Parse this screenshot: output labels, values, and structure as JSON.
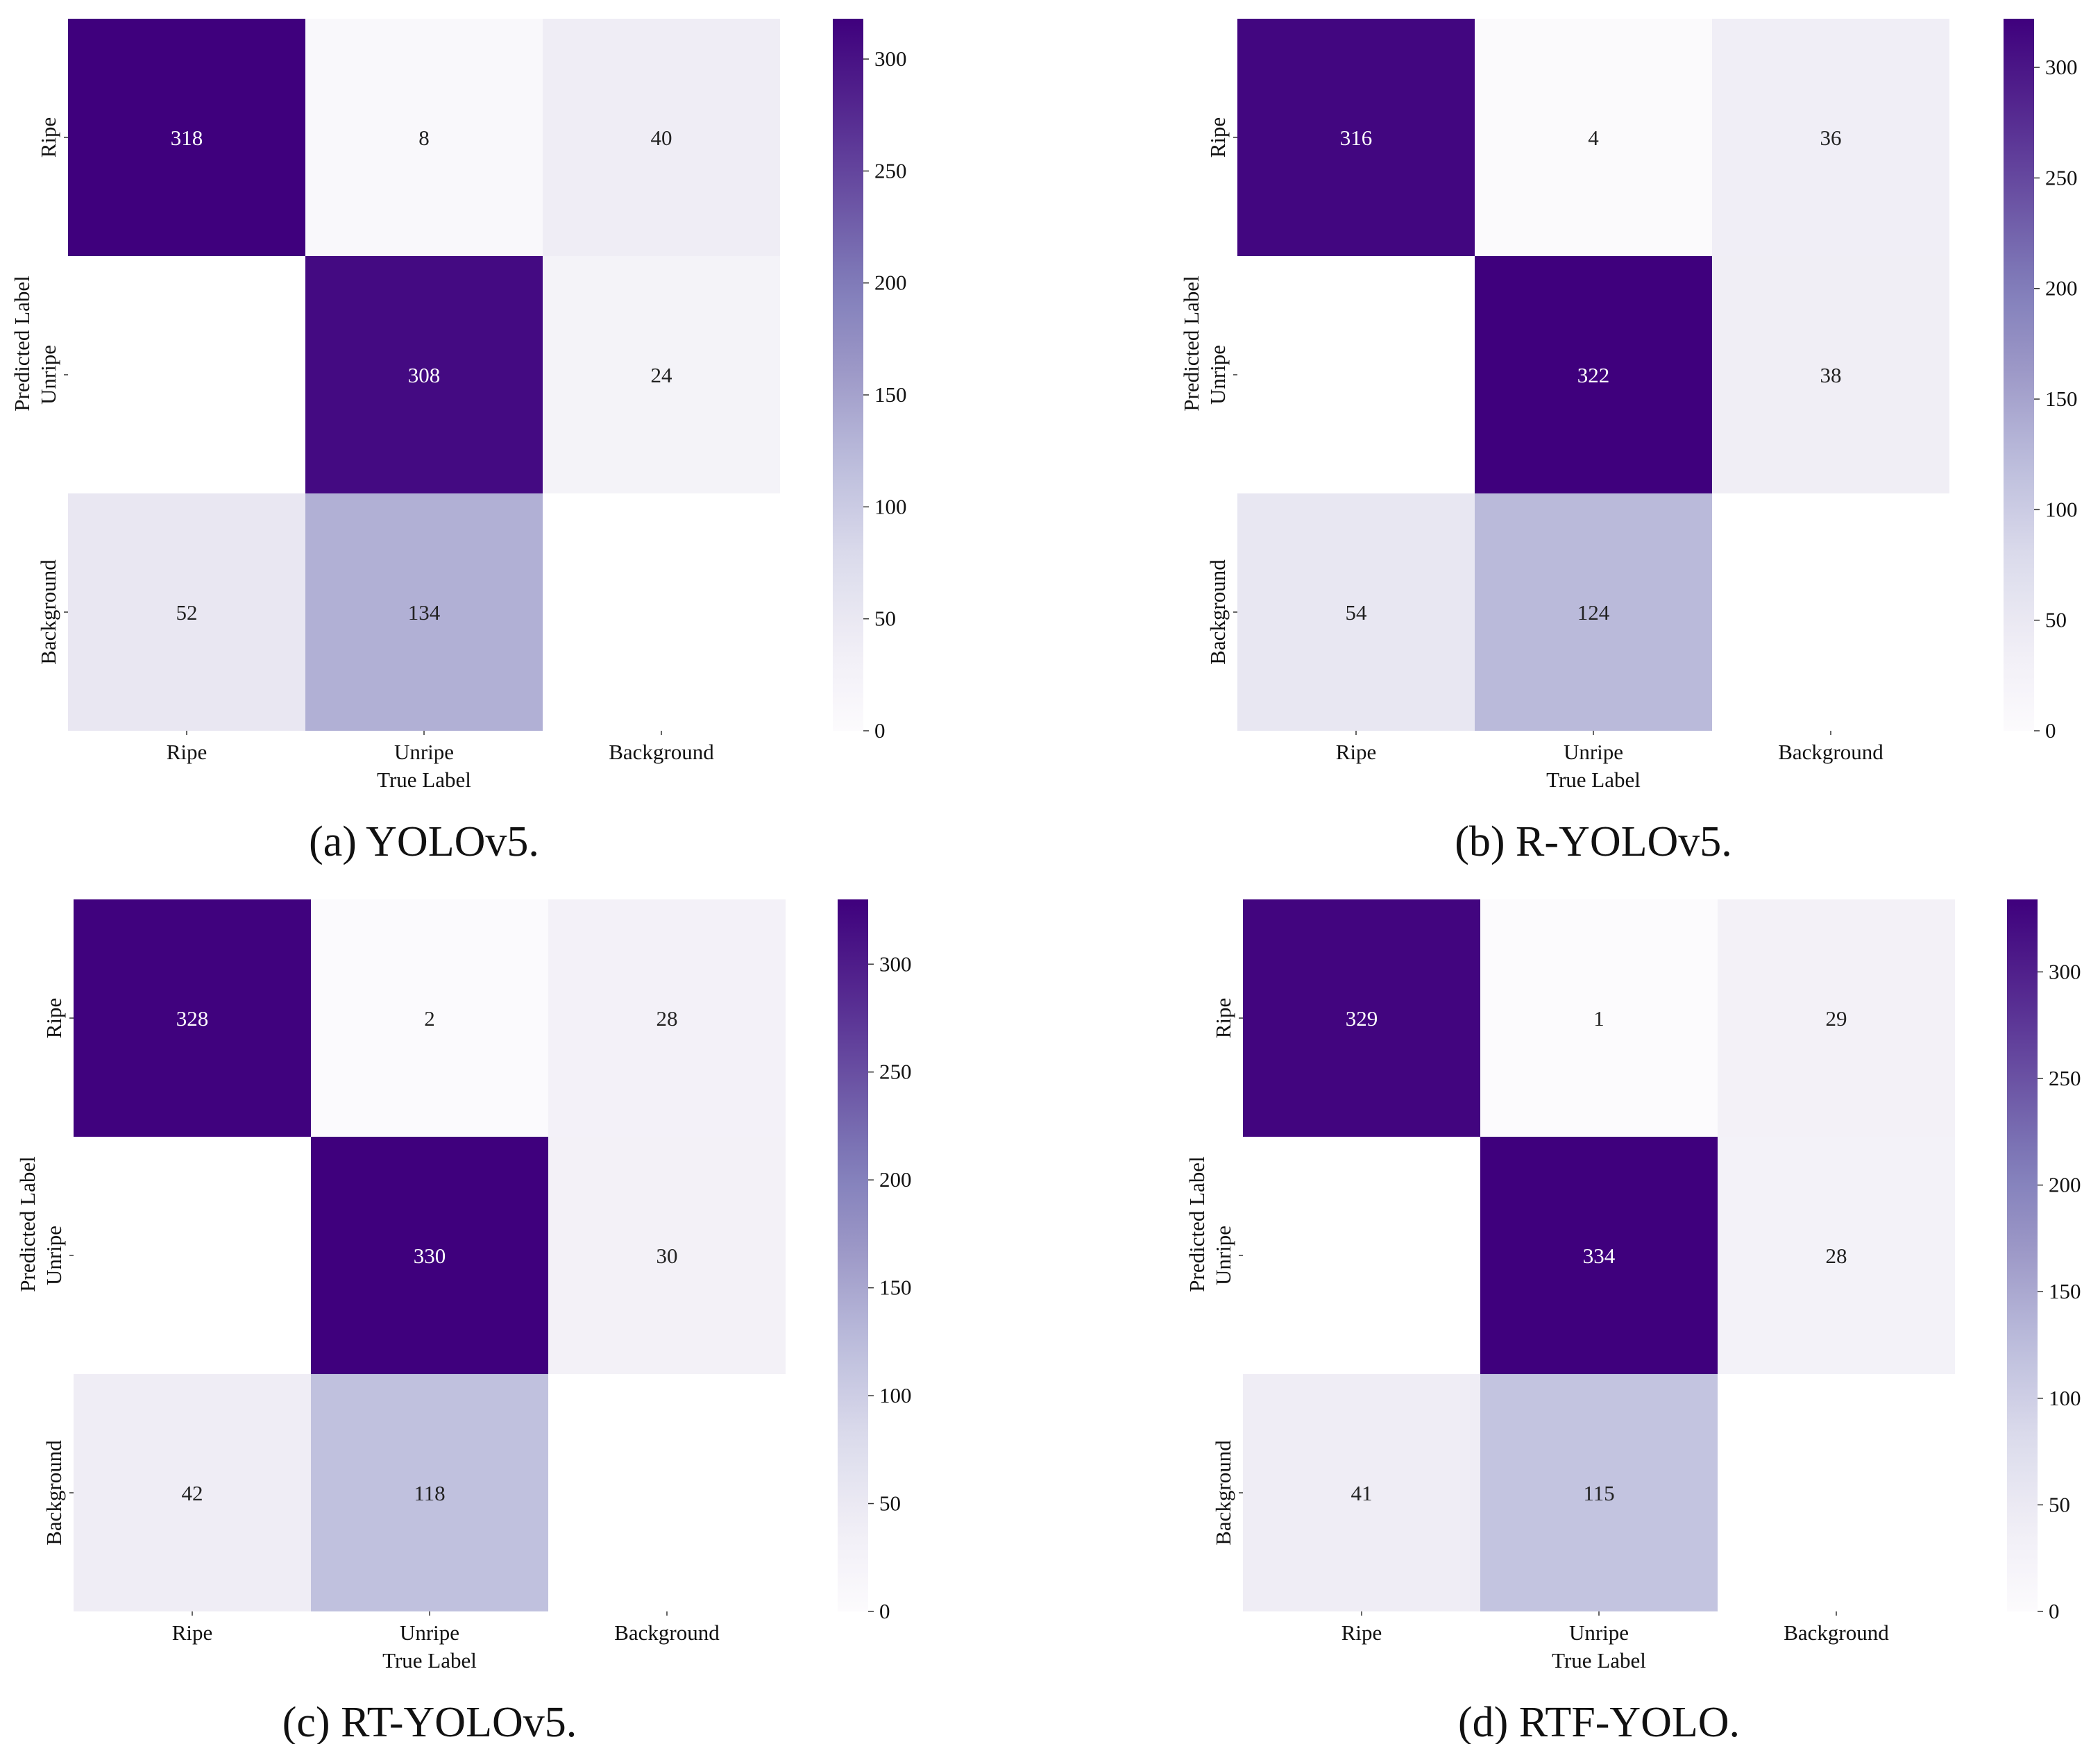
{
  "chart_data": [
    {
      "type": "heatmap",
      "caption": "(a) YOLOv5.",
      "xlabel": "True Label",
      "ylabel": "Predicted Label",
      "x_categories": [
        "Ripe",
        "Unripe",
        "Background"
      ],
      "y_categories": [
        "Ripe",
        "Unripe",
        "Background"
      ],
      "matrix": [
        [
          318,
          8,
          40
        ],
        [
          null,
          308,
          24
        ],
        [
          52,
          134,
          null
        ]
      ],
      "colorbar": {
        "min": 0,
        "max": 318,
        "ticks": [
          0,
          50,
          100,
          150,
          200,
          250,
          300
        ],
        "tick_labels": [
          "0",
          "50",
          "100",
          "150",
          "200",
          "250",
          "300"
        ]
      },
      "colormap": "Purples"
    },
    {
      "type": "heatmap",
      "caption": "(b) R-YOLOv5.",
      "xlabel": "True Label",
      "ylabel": "Predicted Label",
      "x_categories": [
        "Ripe",
        "Unripe",
        "Background"
      ],
      "y_categories": [
        "Ripe",
        "Unripe",
        "Background"
      ],
      "matrix": [
        [
          316,
          4,
          36
        ],
        [
          null,
          322,
          38
        ],
        [
          54,
          124,
          null
        ]
      ],
      "colorbar": {
        "min": 0,
        "max": 322,
        "ticks": [
          0,
          50,
          100,
          150,
          200,
          250,
          300
        ],
        "tick_labels": [
          "0",
          "50",
          "100",
          "150",
          "200",
          "250",
          "300"
        ]
      },
      "colormap": "Purples"
    },
    {
      "type": "heatmap",
      "caption": "(c) RT-YOLOv5.",
      "xlabel": "True Label",
      "ylabel": "Predicted Label",
      "x_categories": [
        "Ripe",
        "Unripe",
        "Background"
      ],
      "y_categories": [
        "Ripe",
        "Unripe",
        "Background"
      ],
      "matrix": [
        [
          328,
          2,
          28
        ],
        [
          null,
          330,
          30
        ],
        [
          42,
          118,
          null
        ]
      ],
      "colorbar": {
        "min": 0,
        "max": 330,
        "ticks": [
          0,
          50,
          100,
          150,
          200,
          250,
          300
        ],
        "tick_labels": [
          "0",
          "50",
          "100",
          "150",
          "200",
          "250",
          "300"
        ]
      },
      "colormap": "Purples"
    },
    {
      "type": "heatmap",
      "caption": "(d) RTF-YOLO.",
      "xlabel": "True Label",
      "ylabel": "Predicted Label",
      "x_categories": [
        "Ripe",
        "Unripe",
        "Background"
      ],
      "y_categories": [
        "Ripe",
        "Unripe",
        "Background"
      ],
      "matrix": [
        [
          329,
          1,
          29
        ],
        [
          null,
          334,
          28
        ],
        [
          41,
          115,
          null
        ]
      ],
      "colorbar": {
        "min": 0,
        "max": 334,
        "ticks": [
          0,
          50,
          100,
          150,
          200,
          250,
          300
        ],
        "tick_labels": [
          "0",
          "50",
          "100",
          "150",
          "200",
          "250",
          "300"
        ]
      },
      "colormap": "Purples"
    }
  ]
}
